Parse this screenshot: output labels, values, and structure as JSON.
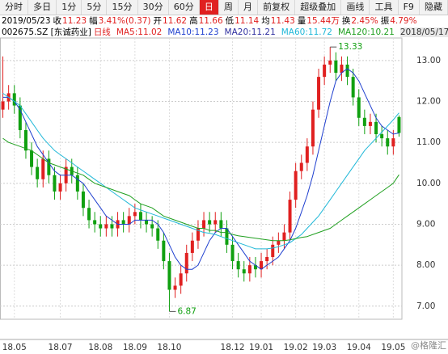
{
  "toolbar": {
    "tabs": [
      "分时",
      "多日",
      "1分",
      "5分",
      "15分",
      "30分",
      "60分",
      "日",
      "周",
      "月",
      "前复权",
      "超级叠加",
      "画线",
      "工具",
      "F9",
      "隐藏"
    ],
    "active": 7
  },
  "info": {
    "date": "2019/05/23",
    "items": [
      {
        "label": "收",
        "value": "11.23"
      },
      {
        "label": "幅",
        "value": "3.41%(0.37)"
      },
      {
        "label": "开",
        "value": "11.62"
      },
      {
        "label": "高",
        "value": "11.66"
      },
      {
        "label": "低",
        "value": "11.14"
      },
      {
        "label": "均",
        "value": "11.43"
      },
      {
        "label": "量",
        "value": "15.44万"
      },
      {
        "label": "换",
        "value": "2.45%"
      },
      {
        "label": "振",
        "value": "4.79%"
      }
    ]
  },
  "legend": {
    "code": "002675.SZ [东诚药业]",
    "period": "日线",
    "items": [
      {
        "text": "MA5:11.02",
        "color": "#e02020"
      },
      {
        "text": "MA10:11.23",
        "color": "#1f3fcf"
      },
      {
        "text": "MA20:11.21",
        "color": "#3030a0"
      },
      {
        "text": "MA60:11.72",
        "color": "#20b8d8"
      },
      {
        "text": "MA120:10.21",
        "color": "#20a020"
      }
    ],
    "range": "2018/05/17-..."
  },
  "watermark": "@格隆汇",
  "chart_data": {
    "type": "candlestick",
    "categories": [
      null,
      null,
      "18.05",
      null,
      null,
      null,
      null,
      null,
      null,
      null,
      "18.07",
      null,
      null,
      null,
      null,
      null,
      null,
      "18.08",
      null,
      null,
      null,
      null,
      null,
      "18.09",
      null,
      null,
      null,
      null,
      null,
      "18.10",
      null,
      null,
      null,
      null,
      null,
      null,
      null,
      null,
      null,
      null,
      "18.12",
      null,
      null,
      null,
      null,
      "19.01",
      null,
      null,
      null,
      null,
      null,
      "19.02",
      null,
      null,
      null,
      null,
      "19.03",
      null,
      null,
      null,
      null,
      null,
      "19.04",
      null,
      null,
      null,
      null,
      null,
      "19.05",
      null
    ],
    "candles": {
      "open": [
        11.8,
        12.0,
        12.2,
        11.9,
        11.3,
        10.8,
        10.4,
        10.1,
        10.6,
        10.2,
        9.8,
        10.0,
        10.4,
        10.2,
        9.8,
        9.4,
        9.1,
        9.0,
        8.9,
        9.0,
        8.9,
        9.1,
        9.0,
        9.2,
        9.3,
        9.1,
        9.0,
        8.9,
        8.6,
        8.1,
        7.4,
        7.5,
        7.8,
        8.3,
        8.6,
        8.9,
        9.1,
        9.0,
        9.1,
        8.9,
        8.5,
        8.1,
        7.9,
        7.8,
        8.0,
        7.9,
        8.1,
        8.2,
        8.5,
        8.6,
        8.8,
        9.6,
        10.3,
        10.5,
        10.9,
        11.8,
        12.6,
        12.9,
        13.0,
        12.7,
        12.9,
        12.6,
        12.1,
        11.6,
        11.4,
        11.5,
        11.2,
        11.1,
        10.9,
        11.62
      ],
      "high": [
        13.1,
        12.4,
        12.4,
        12.1,
        11.5,
        11.0,
        10.6,
        10.8,
        10.8,
        10.4,
        10.2,
        10.6,
        10.6,
        10.4,
        10.0,
        9.6,
        9.3,
        9.2,
        9.2,
        9.2,
        9.3,
        9.3,
        9.4,
        9.5,
        9.5,
        9.3,
        9.2,
        9.1,
        8.8,
        8.3,
        7.7,
        8.0,
        8.5,
        8.8,
        9.1,
        9.3,
        9.3,
        9.3,
        9.3,
        9.1,
        8.7,
        8.3,
        8.1,
        8.2,
        8.2,
        8.3,
        8.4,
        8.7,
        8.8,
        9.0,
        9.8,
        10.5,
        10.7,
        11.1,
        12.0,
        12.8,
        13.1,
        13.33,
        13.2,
        13.1,
        13.1,
        12.8,
        12.3,
        11.8,
        11.7,
        11.7,
        11.4,
        11.3,
        11.3,
        11.66
      ],
      "low": [
        11.6,
        11.8,
        11.7,
        11.1,
        10.6,
        10.2,
        9.9,
        9.9,
        10.0,
        9.6,
        9.6,
        9.8,
        10.0,
        9.6,
        9.2,
        8.9,
        8.8,
        8.7,
        8.7,
        8.7,
        8.7,
        8.8,
        8.8,
        9.0,
        8.9,
        8.8,
        8.7,
        8.4,
        7.9,
        6.87,
        7.2,
        7.3,
        7.6,
        8.1,
        8.4,
        8.7,
        8.8,
        8.8,
        8.7,
        8.3,
        7.9,
        7.7,
        7.6,
        7.6,
        7.7,
        7.7,
        7.9,
        8.0,
        8.3,
        8.4,
        8.6,
        9.4,
        10.1,
        10.3,
        10.7,
        11.6,
        12.4,
        12.7,
        12.5,
        12.5,
        12.4,
        11.9,
        11.4,
        11.2,
        11.2,
        11.0,
        10.9,
        10.7,
        10.7,
        11.14
      ],
      "close": [
        12.0,
        12.2,
        11.9,
        11.3,
        10.8,
        10.4,
        10.1,
        10.6,
        10.2,
        9.8,
        10.0,
        10.4,
        10.2,
        9.8,
        9.4,
        9.1,
        9.0,
        8.9,
        9.0,
        8.9,
        9.1,
        9.0,
        9.2,
        9.3,
        9.1,
        9.0,
        8.9,
        8.6,
        8.1,
        7.4,
        7.5,
        7.8,
        8.3,
        8.6,
        8.9,
        9.1,
        9.0,
        9.1,
        8.9,
        8.5,
        8.1,
        7.9,
        7.8,
        8.0,
        7.9,
        8.1,
        8.2,
        8.5,
        8.6,
        8.8,
        9.6,
        10.3,
        10.5,
        10.9,
        11.8,
        12.6,
        12.9,
        13.0,
        12.7,
        12.9,
        12.6,
        12.1,
        11.6,
        11.4,
        11.5,
        11.2,
        11.1,
        10.9,
        11.1,
        11.23
      ],
      "up_color": "#e02020",
      "down_color": "#10a010"
    },
    "series": [
      {
        "color": "#1f3fcf",
        "values": [
          12.1,
          12.1,
          12.0,
          11.8,
          11.5,
          11.2,
          10.9,
          10.7,
          10.5,
          10.3,
          10.2,
          10.2,
          10.2,
          10.1,
          10.0,
          9.8,
          9.6,
          9.4,
          9.2,
          9.1,
          9.0,
          9.0,
          9.0,
          9.1,
          9.1,
          9.1,
          9.1,
          9.0,
          8.8,
          8.5,
          8.2,
          8.0,
          7.9,
          7.9,
          8.0,
          8.3,
          8.6,
          8.8,
          8.9,
          8.9,
          8.7,
          8.5,
          8.3,
          8.1,
          8.0,
          7.9,
          8.0,
          8.1,
          8.2,
          8.4,
          8.6,
          8.9,
          9.3,
          9.7,
          10.2,
          10.8,
          11.4,
          12.0,
          12.5,
          12.7,
          12.8,
          12.7,
          12.5,
          12.2,
          11.9,
          11.6,
          11.4,
          11.3,
          11.2,
          11.23
        ]
      },
      {
        "color": "#20b8d8",
        "values": [
          12.2,
          12.1,
          12.0,
          11.9,
          11.7,
          11.5,
          11.3,
          11.1,
          10.95,
          10.8,
          10.7,
          10.6,
          10.5,
          10.4,
          10.3,
          10.2,
          10.1,
          10.0,
          9.9,
          9.8,
          9.7,
          9.6,
          9.5,
          9.4,
          9.35,
          9.3,
          9.25,
          9.2,
          9.15,
          9.1,
          9.05,
          9.0,
          8.95,
          8.9,
          8.85,
          8.8,
          8.78,
          8.75,
          8.7,
          8.65,
          8.6,
          8.55,
          8.5,
          8.45,
          8.4,
          8.4,
          8.4,
          8.42,
          8.45,
          8.5,
          8.55,
          8.65,
          8.75,
          8.9,
          9.05,
          9.2,
          9.4,
          9.6,
          9.8,
          10.0,
          10.2,
          10.4,
          10.6,
          10.8,
          10.95,
          11.1,
          11.25,
          11.4,
          11.55,
          11.72
        ]
      },
      {
        "color": "#20a020",
        "values": [
          11.1,
          11.0,
          10.95,
          10.9,
          10.85,
          10.8,
          10.7,
          10.6,
          10.5,
          10.45,
          10.4,
          10.35,
          10.3,
          10.25,
          10.2,
          10.1,
          10.0,
          9.95,
          9.9,
          9.85,
          9.8,
          9.75,
          9.7,
          9.6,
          9.5,
          9.45,
          9.4,
          9.3,
          9.2,
          9.15,
          9.1,
          9.05,
          9.0,
          8.95,
          8.9,
          8.9,
          8.85,
          8.85,
          8.8,
          8.8,
          8.75,
          8.72,
          8.7,
          8.68,
          8.66,
          8.64,
          8.62,
          8.6,
          8.6,
          8.6,
          8.62,
          8.65,
          8.68,
          8.7,
          8.75,
          8.8,
          8.85,
          8.9,
          9.0,
          9.1,
          9.2,
          9.3,
          9.4,
          9.5,
          9.6,
          9.7,
          9.8,
          9.9,
          10.0,
          10.21
        ]
      }
    ],
    "ylim": [
      6.68,
      13.55
    ],
    "yticks": [
      {
        "value": 7,
        "label": "7.00"
      },
      {
        "value": 8,
        "label": "8.00"
      },
      {
        "value": 9,
        "label": "9.00"
      },
      {
        "value": 10,
        "label": "10.00"
      },
      {
        "value": 11,
        "label": "11.00"
      },
      {
        "value": 12,
        "label": "12.00"
      },
      {
        "value": 13,
        "label": "13.00"
      }
    ],
    "annotations": [
      {
        "path": "chart_data.candles.high.57"
      },
      {
        "path": "chart_data.candles.low.29"
      }
    ],
    "grid": true
  }
}
